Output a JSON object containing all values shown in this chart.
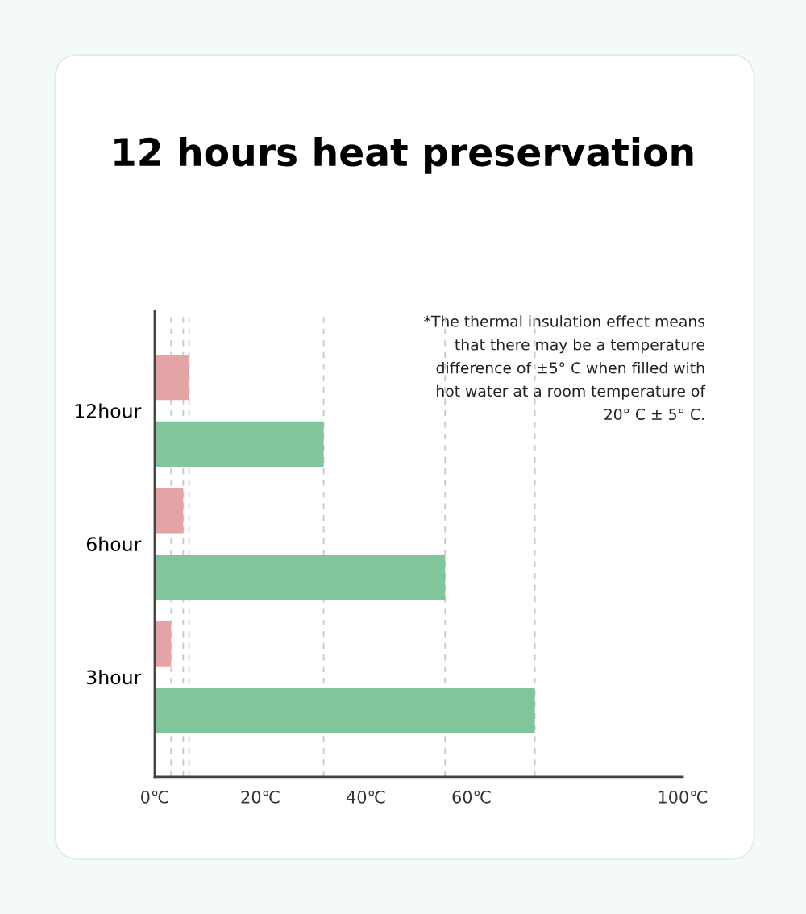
{
  "chart_data": {
    "type": "bar",
    "orientation": "horizontal",
    "title": "12 hours heat preservation",
    "categories": [
      "12hour",
      "6hour",
      "3hour"
    ],
    "series": [
      {
        "color": "#e4a3a4",
        "values": [
          6.5,
          5.4,
          3.1
        ]
      },
      {
        "color": "#80c59b",
        "values": [
          32,
          55,
          72
        ]
      }
    ],
    "xlim": [
      0,
      100
    ],
    "xticks": [
      {
        "value": 0,
        "label": "0℃"
      },
      {
        "value": 20,
        "label": "20℃"
      },
      {
        "value": 40,
        "label": "40℃"
      },
      {
        "value": 60,
        "label": "60℃"
      },
      {
        "value": 100,
        "label": "100℃"
      }
    ],
    "ref_lines": [
      {
        "axis": "x",
        "value": 6.5,
        "color": "#c8c8c8",
        "line_style": "dashed"
      },
      {
        "axis": "x",
        "value": 5.4,
        "color": "#c8c8c8",
        "line_style": "dashed"
      },
      {
        "axis": "x",
        "value": 3.1,
        "color": "#c8c8c8",
        "line_style": "dashed"
      },
      {
        "axis": "x",
        "value": 32,
        "color": "#c8c8c8",
        "line_style": "dashed"
      },
      {
        "axis": "x",
        "value": 55,
        "color": "#c8c8c8",
        "line_style": "dashed"
      },
      {
        "axis": "x",
        "value": 72,
        "color": "#c8c8c8",
        "line_style": "dashed"
      }
    ],
    "annotations": [
      "*The thermal insulation effect means\nthat there may be a temperature\ndifference of ±5° C when filled with\nhot water at a room temperature of\n20° C ± 5° C."
    ],
    "grid": false,
    "legend": false
  }
}
